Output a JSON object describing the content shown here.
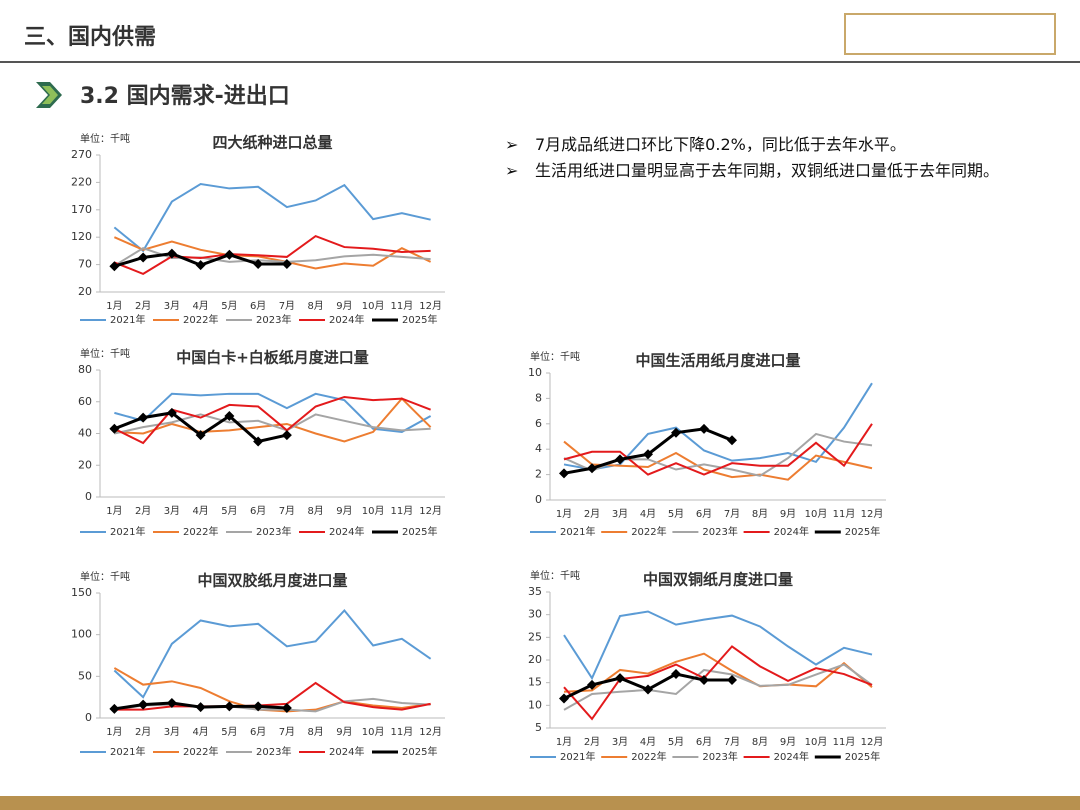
{
  "header": {
    "section": "三、国内供需",
    "subtitle": "3.2 国内需求-进出口"
  },
  "bullets": [
    "7月成品纸进口环比下降0.2%，同比低于去年水平。",
    "生活用纸进口量明显高于去年同期，双铜纸进口量低于去年同期。"
  ],
  "chart_data": [
    {
      "type": "line",
      "title": "四大纸种进口总量",
      "unit": "单位：千吨",
      "categories": [
        "1月",
        "2月",
        "3月",
        "4月",
        "5月",
        "6月",
        "7月",
        "8月",
        "9月",
        "10月",
        "11月",
        "12月"
      ],
      "ylim": [
        20,
        270
      ],
      "yticks": [
        20,
        70,
        120,
        170,
        220,
        270
      ],
      "series": [
        {
          "name": "2021年",
          "color": "#5b9bd5",
          "values": [
            138,
            95,
            185,
            217,
            209,
            212,
            175,
            187,
            215,
            153,
            164,
            152
          ]
        },
        {
          "name": "2022年",
          "color": "#ed7d31",
          "values": [
            120,
            97,
            112,
            97,
            87,
            85,
            75,
            63,
            72,
            68,
            100,
            75
          ]
        },
        {
          "name": "2023年",
          "color": "#a5a5a5",
          "values": [
            68,
            100,
            82,
            83,
            75,
            78,
            75,
            78,
            85,
            88,
            84,
            80
          ]
        },
        {
          "name": "2024年",
          "color": "#e31a1c",
          "values": [
            74,
            53,
            85,
            82,
            89,
            87,
            84,
            122,
            102,
            99,
            93,
            95
          ]
        },
        {
          "name": "2025年",
          "color": "#000000",
          "values": [
            67,
            83,
            90,
            69,
            88,
            71,
            71,
            null,
            null,
            null,
            null,
            null
          ]
        }
      ]
    },
    {
      "type": "line",
      "title": "中国白卡+白板纸月度进口量",
      "unit": "单位：千吨",
      "categories": [
        "1月",
        "2月",
        "3月",
        "4月",
        "5月",
        "6月",
        "7月",
        "8月",
        "9月",
        "10月",
        "11月",
        "12月"
      ],
      "ylim": [
        0,
        80
      ],
      "yticks": [
        0,
        20,
        40,
        60,
        80
      ],
      "series": [
        {
          "name": "2021年",
          "color": "#5b9bd5",
          "values": [
            53,
            48,
            65,
            64,
            65,
            65,
            56,
            65,
            61,
            43,
            41,
            51
          ]
        },
        {
          "name": "2022年",
          "color": "#ed7d31",
          "values": [
            41,
            40,
            46,
            41,
            42,
            44,
            46,
            40,
            35,
            41,
            62,
            44
          ]
        },
        {
          "name": "2023年",
          "color": "#a5a5a5",
          "values": [
            40,
            44,
            47,
            52,
            47,
            48,
            42,
            52,
            48,
            44,
            42,
            43
          ]
        },
        {
          "name": "2024年",
          "color": "#e31a1c",
          "values": [
            43,
            34,
            55,
            50,
            58,
            57,
            42,
            57,
            63,
            61,
            62,
            55
          ]
        },
        {
          "name": "2025年",
          "color": "#000000",
          "values": [
            43,
            50,
            53,
            39,
            51,
            35,
            39,
            null,
            null,
            null,
            null,
            null
          ]
        }
      ]
    },
    {
      "type": "line",
      "title": "中国生活用纸月度进口量",
      "unit": "单位：千吨",
      "categories": [
        "1月",
        "2月",
        "3月",
        "4月",
        "5月",
        "6月",
        "7月",
        "8月",
        "9月",
        "10月",
        "11月",
        "12月"
      ],
      "ylim": [
        0,
        10
      ],
      "yticks": [
        0,
        2,
        4,
        6,
        8,
        10
      ],
      "series": [
        {
          "name": "2021年",
          "color": "#5b9bd5",
          "values": [
            2.8,
            2.4,
            2.8,
            5.2,
            5.7,
            3.9,
            3.1,
            3.3,
            3.7,
            3.0,
            5.7,
            9.2
          ]
        },
        {
          "name": "2022年",
          "color": "#ed7d31",
          "values": [
            4.6,
            2.8,
            2.7,
            2.6,
            3.7,
            2.4,
            1.8,
            2.0,
            1.6,
            3.5,
            3.0,
            2.5
          ]
        },
        {
          "name": "2023年",
          "color": "#a5a5a5",
          "values": [
            3.3,
            2.3,
            3.2,
            3.2,
            2.4,
            2.8,
            2.4,
            1.9,
            3.3,
            5.2,
            4.6,
            4.3
          ]
        },
        {
          "name": "2024年",
          "color": "#e31a1c",
          "values": [
            3.2,
            3.8,
            3.8,
            2.0,
            2.9,
            2.0,
            2.9,
            2.7,
            2.7,
            4.5,
            2.7,
            6.0
          ]
        },
        {
          "name": "2025年",
          "color": "#000000",
          "values": [
            2.1,
            2.5,
            3.2,
            3.6,
            5.3,
            5.6,
            4.7,
            null,
            null,
            null,
            null,
            null
          ]
        }
      ]
    },
    {
      "type": "line",
      "title": "中国双胶纸月度进口量",
      "unit": "单位：千吨",
      "categories": [
        "1月",
        "2月",
        "3月",
        "4月",
        "5月",
        "6月",
        "7月",
        "8月",
        "9月",
        "10月",
        "11月",
        "12月"
      ],
      "ylim": [
        0,
        150
      ],
      "yticks": [
        0,
        50,
        100,
        150
      ],
      "series": [
        {
          "name": "2021年",
          "color": "#5b9bd5",
          "values": [
            57,
            25,
            89,
            117,
            110,
            113,
            86,
            92,
            129,
            87,
            95,
            71
          ]
        },
        {
          "name": "2022年",
          "color": "#ed7d31",
          "values": [
            60,
            40,
            44,
            36,
            20,
            10,
            8,
            10,
            20,
            15,
            12,
            17
          ]
        },
        {
          "name": "2023年",
          "color": "#a5a5a5",
          "values": [
            10,
            15,
            16,
            14,
            14,
            10,
            10,
            8,
            20,
            23,
            18,
            16
          ]
        },
        {
          "name": "2024年",
          "color": "#e31a1c",
          "values": [
            10,
            10,
            14,
            14,
            14,
            15,
            17,
            42,
            19,
            13,
            10,
            17
          ]
        },
        {
          "name": "2025年",
          "color": "#000000",
          "values": [
            11,
            16,
            18,
            13,
            14,
            14,
            12,
            null,
            null,
            null,
            null,
            null
          ]
        }
      ]
    },
    {
      "type": "line",
      "title": "中国双铜纸月度进口量",
      "unit": "单位：千吨",
      "categories": [
        "1月",
        "2月",
        "3月",
        "4月",
        "5月",
        "6月",
        "7月",
        "8月",
        "9月",
        "10月",
        "11月",
        "12月"
      ],
      "ylim": [
        5,
        35
      ],
      "yticks": [
        5,
        10,
        15,
        20,
        25,
        30,
        35
      ],
      "series": [
        {
          "name": "2021年",
          "color": "#5b9bd5",
          "values": [
            25.5,
            16,
            29.7,
            30.7,
            27.8,
            28.9,
            29.8,
            27.4,
            23,
            19,
            22.7,
            21.2
          ]
        },
        {
          "name": "2022年",
          "color": "#ed7d31",
          "values": [
            13,
            13.3,
            17.8,
            17,
            19.6,
            21.4,
            17.6,
            14.2,
            14.6,
            14.2,
            19.3,
            14
          ]
        },
        {
          "name": "2023年",
          "color": "#a5a5a5",
          "values": [
            9,
            12.5,
            13,
            13.4,
            12.5,
            17.8,
            16.8,
            14.3,
            14.5,
            16.8,
            19,
            14.5
          ]
        },
        {
          "name": "2024年",
          "color": "#e31a1c",
          "values": [
            14,
            7,
            15.8,
            16.5,
            19,
            16,
            23,
            18.6,
            15.4,
            18.2,
            16.9,
            14.5
          ]
        },
        {
          "name": "2025年",
          "color": "#000000",
          "values": [
            11.5,
            14.5,
            16,
            13.5,
            16.9,
            15.6,
            15.6,
            null,
            null,
            null,
            null,
            null
          ]
        }
      ]
    }
  ]
}
